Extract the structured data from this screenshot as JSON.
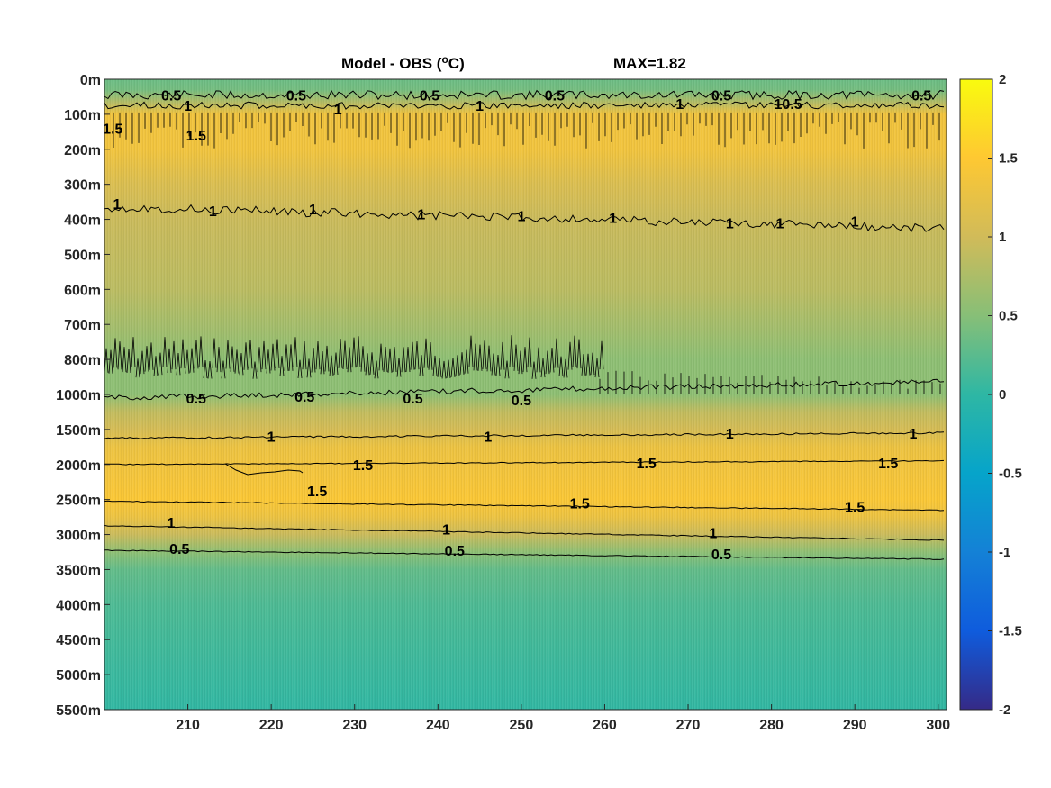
{
  "chart_data": {
    "type": "heatmap",
    "title": "Model - OBS (",
    "title_unit_sup": "o",
    "title_unit_end": "C)",
    "max_label": "MAX=1.82",
    "x_ticks": [
      210,
      220,
      230,
      240,
      250,
      260,
      270,
      280,
      290,
      300
    ],
    "xlim": [
      200,
      301
    ],
    "y_tick_labels": [
      "0m",
      "100m",
      "200m",
      "300m",
      "400m",
      "500m",
      "600m",
      "700m",
      "800m",
      "1000m",
      "1500m",
      "2000m",
      "2500m",
      "3000m",
      "3500m",
      "4000m",
      "4500m",
      "5000m",
      "5500m"
    ],
    "colorbar": {
      "ticks": [
        "2",
        "1.5",
        "1",
        "0.5",
        "0",
        "-0.5",
        "-1",
        "-1.5",
        "-2"
      ],
      "range": [
        -2,
        2
      ],
      "colormap": "parula"
    },
    "depth_profile": [
      {
        "level": 0,
        "value": 0.35
      },
      {
        "level": 0.3,
        "value": 0.4
      },
      {
        "level": 0.7,
        "value": 0.85
      },
      {
        "level": 1.0,
        "value": 1.35
      },
      {
        "level": 2.0,
        "value": 1.35
      },
      {
        "level": 3.0,
        "value": 1.1
      },
      {
        "level": 4.0,
        "value": 0.95
      },
      {
        "level": 6.0,
        "value": 0.85
      },
      {
        "level": 7.0,
        "value": 0.7
      },
      {
        "level": 8.0,
        "value": 0.55
      },
      {
        "level": 9.0,
        "value": 0.55
      },
      {
        "level": 9.5,
        "value": 0.9
      },
      {
        "level": 10.0,
        "value": 1.05
      },
      {
        "level": 10.5,
        "value": 1.3
      },
      {
        "level": 11.0,
        "value": 1.35
      },
      {
        "level": 12.0,
        "value": 1.45
      },
      {
        "level": 12.5,
        "value": 1.3
      },
      {
        "level": 13.0,
        "value": 0.95
      },
      {
        "level": 13.5,
        "value": 0.55
      },
      {
        "level": 14.0,
        "value": 0.3
      },
      {
        "level": 15.0,
        "value": 0.18
      },
      {
        "level": 16.0,
        "value": 0.12
      },
      {
        "level": 17.0,
        "value": 0.07
      },
      {
        "level": 18.0,
        "value": 0.02
      }
    ],
    "contour_labels": [
      {
        "text": "0.5",
        "x": 208,
        "level": 0.45
      },
      {
        "text": "0.5",
        "x": 223,
        "level": 0.45
      },
      {
        "text": "0.5",
        "x": 239,
        "level": 0.45
      },
      {
        "text": "0.5",
        "x": 254,
        "level": 0.45
      },
      {
        "text": "0.5",
        "x": 274,
        "level": 0.45
      },
      {
        "text": "10.5",
        "x": 282,
        "level": 0.7
      },
      {
        "text": "0.5",
        "x": 298,
        "level": 0.45
      },
      {
        "text": "1",
        "x": 210,
        "level": 0.75
      },
      {
        "text": "1",
        "x": 228,
        "level": 0.85
      },
      {
        "text": "1",
        "x": 245,
        "level": 0.75
      },
      {
        "text": "1",
        "x": 269,
        "level": 0.7
      },
      {
        "text": "1.5",
        "x": 201,
        "level": 1.4
      },
      {
        "text": "1.5",
        "x": 211,
        "level": 1.6
      },
      {
        "text": "1",
        "x": 201.5,
        "level": 3.55
      },
      {
        "text": "1",
        "x": 213,
        "level": 3.75
      },
      {
        "text": "1",
        "x": 225,
        "level": 3.7
      },
      {
        "text": "1",
        "x": 238,
        "level": 3.85
      },
      {
        "text": "1",
        "x": 250,
        "level": 3.9
      },
      {
        "text": "1",
        "x": 261,
        "level": 3.95
      },
      {
        "text": "1",
        "x": 275,
        "level": 4.1
      },
      {
        "text": "1",
        "x": 281,
        "level": 4.1
      },
      {
        "text": "1",
        "x": 290,
        "level": 4.05
      },
      {
        "text": "0.5",
        "x": 211,
        "level": 9.1
      },
      {
        "text": "0.5",
        "x": 224,
        "level": 9.05
      },
      {
        "text": "0.5",
        "x": 237,
        "level": 9.1
      },
      {
        "text": "0.5",
        "x": 250,
        "level": 9.15
      },
      {
        "text": "1",
        "x": 220,
        "level": 10.2
      },
      {
        "text": "1",
        "x": 246,
        "level": 10.2
      },
      {
        "text": "1",
        "x": 275,
        "level": 10.1
      },
      {
        "text": "1",
        "x": 297,
        "level": 10.1
      },
      {
        "text": "1.5",
        "x": 231,
        "level": 11.0
      },
      {
        "text": "1.5",
        "x": 265,
        "level": 10.95
      },
      {
        "text": "1.5",
        "x": 294,
        "level": 10.95
      },
      {
        "text": "1.5",
        "x": 225.5,
        "level": 11.75
      },
      {
        "text": "1.5",
        "x": 257,
        "level": 12.1
      },
      {
        "text": "1.5",
        "x": 290,
        "level": 12.2
      },
      {
        "text": "1",
        "x": 208,
        "level": 12.65
      },
      {
        "text": "1",
        "x": 241,
        "level": 12.85
      },
      {
        "text": "1",
        "x": 273,
        "level": 12.95
      },
      {
        "text": "0.5",
        "x": 209,
        "level": 13.4
      },
      {
        "text": "0.5",
        "x": 242,
        "level": 13.45
      },
      {
        "text": "0.5",
        "x": 274,
        "level": 13.55
      }
    ]
  }
}
